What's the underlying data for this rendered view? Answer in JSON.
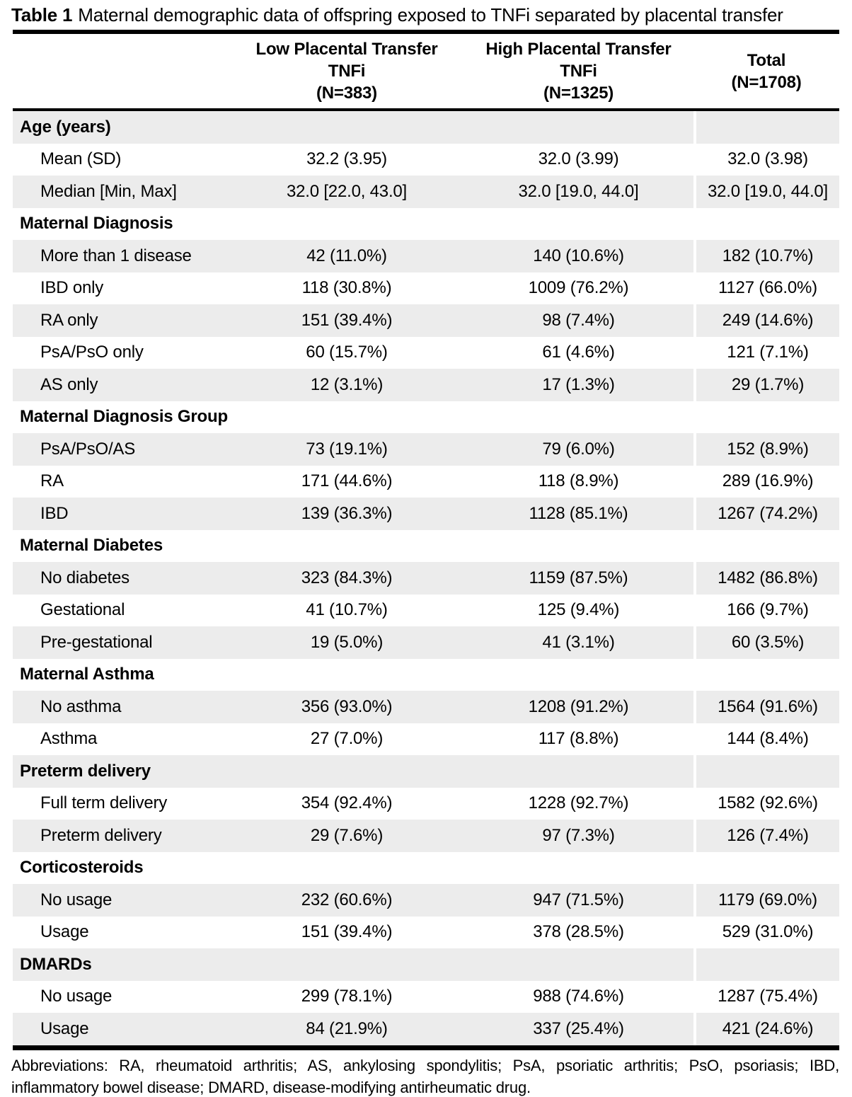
{
  "title": {
    "label": "Table 1",
    "caption": "Maternal demographic data of offspring exposed to TNFi separated by placental transfer"
  },
  "columns": [
    {
      "name": "low-placental-transfer",
      "lines": [
        "Low Placental Transfer",
        "TNFi",
        "(N=383)"
      ]
    },
    {
      "name": "high-placental-transfer",
      "lines": [
        "High Placental Transfer",
        "TNFi",
        "(N=1325)"
      ]
    },
    {
      "name": "total",
      "lines": [
        "Total",
        "(N=1708)"
      ]
    }
  ],
  "sections": [
    {
      "header": "Age (years)",
      "rows": [
        {
          "label": "Mean (SD)",
          "values": [
            "32.2 (3.95)",
            "32.0 (3.99)",
            "32.0 (3.98)"
          ]
        },
        {
          "label": "Median [Min, Max]",
          "values": [
            "32.0 [22.0, 43.0]",
            "32.0 [19.0, 44.0]",
            "32.0 [19.0, 44.0]"
          ]
        }
      ]
    },
    {
      "header": "Maternal Diagnosis",
      "rows": [
        {
          "label": "More than 1 disease",
          "values": [
            "42 (11.0%)",
            "140 (10.6%)",
            "182 (10.7%)"
          ]
        },
        {
          "label": "IBD only",
          "values": [
            "118 (30.8%)",
            "1009 (76.2%)",
            "1127 (66.0%)"
          ]
        },
        {
          "label": "RA only",
          "values": [
            "151 (39.4%)",
            "98 (7.4%)",
            "249 (14.6%)"
          ]
        },
        {
          "label": "PsA/PsO only",
          "values": [
            "60 (15.7%)",
            "61 (4.6%)",
            "121 (7.1%)"
          ]
        },
        {
          "label": "AS only",
          "values": [
            "12 (3.1%)",
            "17 (1.3%)",
            "29 (1.7%)"
          ]
        }
      ]
    },
    {
      "header": "Maternal Diagnosis Group",
      "rows": [
        {
          "label": "PsA/PsO/AS",
          "values": [
            "73 (19.1%)",
            "79 (6.0%)",
            "152 (8.9%)"
          ]
        },
        {
          "label": "RA",
          "values": [
            "171 (44.6%)",
            "118 (8.9%)",
            "289 (16.9%)"
          ]
        },
        {
          "label": "IBD",
          "values": [
            "139 (36.3%)",
            "1128 (85.1%)",
            "1267 (74.2%)"
          ]
        }
      ]
    },
    {
      "header": "Maternal Diabetes",
      "rows": [
        {
          "label": "No diabetes",
          "values": [
            "323 (84.3%)",
            "1159 (87.5%)",
            "1482 (86.8%)"
          ]
        },
        {
          "label": "Gestational",
          "values": [
            "41 (10.7%)",
            "125 (9.4%)",
            "166 (9.7%)"
          ]
        },
        {
          "label": "Pre-gestational",
          "values": [
            "19 (5.0%)",
            "41 (3.1%)",
            "60 (3.5%)"
          ]
        }
      ]
    },
    {
      "header": "Maternal Asthma",
      "rows": [
        {
          "label": "No asthma",
          "values": [
            "356 (93.0%)",
            "1208 (91.2%)",
            "1564 (91.6%)"
          ]
        },
        {
          "label": "Asthma",
          "values": [
            "27 (7.0%)",
            "117 (8.8%)",
            "144 (8.4%)"
          ]
        }
      ]
    },
    {
      "header": "Preterm delivery",
      "rows": [
        {
          "label": "Full term delivery",
          "values": [
            "354 (92.4%)",
            "1228 (92.7%)",
            "1582 (92.6%)"
          ]
        },
        {
          "label": "Preterm delivery",
          "values": [
            "29 (7.6%)",
            "97 (7.3%)",
            "126 (7.4%)"
          ]
        }
      ]
    },
    {
      "header": "Corticosteroids",
      "rows": [
        {
          "label": "No usage",
          "values": [
            "232 (60.6%)",
            "947 (71.5%)",
            "1179 (69.0%)"
          ]
        },
        {
          "label": "Usage",
          "values": [
            "151 (39.4%)",
            "378 (28.5%)",
            "529 (31.0%)"
          ]
        }
      ]
    },
    {
      "header": "DMARDs",
      "rows": [
        {
          "label": "No usage",
          "values": [
            "299 (78.1%)",
            "988 (74.6%)",
            "1287 (75.4%)"
          ]
        },
        {
          "label": "Usage",
          "values": [
            "84 (21.9%)",
            "337 (25.4%)",
            "421 (24.6%)"
          ]
        }
      ]
    }
  ],
  "footnote": "Abbreviations: RA, rheumatoid arthritis; AS, ankylosing spondylitis; PsA, psoriatic arthritis; PsO, psoriasis; IBD, inflammatory bowel disease; DMARD, disease-modifying antirheumatic drug.",
  "colors": {
    "stripe": "#ececec",
    "rule": "#000000",
    "text": "#000000",
    "column_divider": "#ffffff"
  }
}
